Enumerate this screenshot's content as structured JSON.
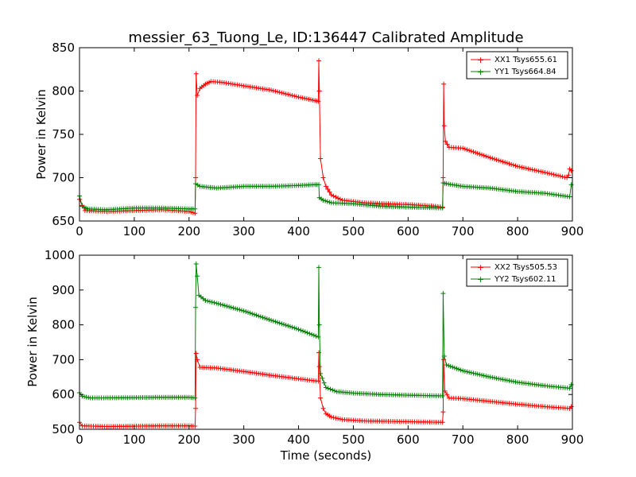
{
  "title": "messier_63_Tuong_Le, ID:136447 Calibrated Amplitude",
  "chart_data": [
    {
      "type": "line",
      "ylabel": "Power in Kelvin",
      "xlabel": "",
      "xlim": [
        0,
        900
      ],
      "ylim": [
        650,
        850
      ],
      "xticks": [
        "0",
        "100",
        "200",
        "300",
        "400",
        "500",
        "600",
        "700",
        "800",
        "900"
      ],
      "yticks": [
        "650",
        "700",
        "750",
        "800",
        "850"
      ],
      "legend_position": "top-right",
      "grid": false,
      "marker": "+",
      "series": [
        {
          "name": "XX1 Tsys655.61",
          "color": "#ff0000",
          "points": [
            [
              0,
              675
            ],
            [
              5,
              668
            ],
            [
              10,
              662
            ],
            [
              50,
              661
            ],
            [
              100,
              662
            ],
            [
              150,
              663
            ],
            [
              200,
              661
            ],
            [
              211,
              659
            ],
            [
              212,
              700
            ],
            [
              213,
              820
            ],
            [
              215,
              795
            ],
            [
              220,
              803
            ],
            [
              230,
              808
            ],
            [
              240,
              811
            ],
            [
              260,
              810
            ],
            [
              300,
              806
            ],
            [
              350,
              801
            ],
            [
              400,
              793
            ],
            [
              430,
              789
            ],
            [
              436,
              788
            ],
            [
              437,
              835
            ],
            [
              438,
              800
            ],
            [
              440,
              722
            ],
            [
              445,
              700
            ],
            [
              450,
              690
            ],
            [
              460,
              680
            ],
            [
              480,
              674
            ],
            [
              520,
              671
            ],
            [
              600,
              669
            ],
            [
              650,
              667
            ],
            [
              663,
              666
            ],
            [
              664,
              700
            ],
            [
              665,
              808
            ],
            [
              666,
              760
            ],
            [
              668,
              742
            ],
            [
              675,
              735
            ],
            [
              700,
              734
            ],
            [
              750,
              723
            ],
            [
              800,
              713
            ],
            [
              850,
              706
            ],
            [
              890,
              700
            ],
            [
              893,
              703
            ],
            [
              895,
              710
            ],
            [
              898,
              708
            ]
          ]
        },
        {
          "name": "YY1 Tsys664.84",
          "color": "#008000",
          "points": [
            [
              0,
              679
            ],
            [
              5,
              667
            ],
            [
              15,
              664
            ],
            [
              50,
              663
            ],
            [
              100,
              665
            ],
            [
              150,
              665
            ],
            [
              200,
              664
            ],
            [
              211,
              664
            ],
            [
              212,
              693
            ],
            [
              220,
              690
            ],
            [
              250,
              688
            ],
            [
              300,
              690
            ],
            [
              350,
              690
            ],
            [
              400,
              691
            ],
            [
              430,
              692
            ],
            [
              437,
              692
            ],
            [
              438,
              677
            ],
            [
              445,
              674
            ],
            [
              460,
              671
            ],
            [
              500,
              670
            ],
            [
              550,
              667
            ],
            [
              600,
              666
            ],
            [
              663,
              665
            ],
            [
              664,
              694
            ],
            [
              670,
              693
            ],
            [
              700,
              690
            ],
            [
              750,
              688
            ],
            [
              800,
              684
            ],
            [
              850,
              682
            ],
            [
              895,
              678
            ],
            [
              898,
              692
            ]
          ]
        }
      ]
    },
    {
      "type": "line",
      "ylabel": "Power in Kelvin",
      "xlabel": "Time (seconds)",
      "xlim": [
        0,
        900
      ],
      "ylim": [
        500,
        1000
      ],
      "xticks": [
        "0",
        "100",
        "200",
        "300",
        "400",
        "500",
        "600",
        "700",
        "800",
        "900"
      ],
      "yticks": [
        "500",
        "600",
        "700",
        "800",
        "900",
        "1000"
      ],
      "legend_position": "top-right",
      "grid": false,
      "marker": "+",
      "series": [
        {
          "name": "XX2 Tsys505.53",
          "color": "#ff0000",
          "points": [
            [
              0,
              520
            ],
            [
              5,
              510
            ],
            [
              50,
              508
            ],
            [
              100,
              509
            ],
            [
              150,
              510
            ],
            [
              200,
              510
            ],
            [
              211,
              509
            ],
            [
              212,
              560
            ],
            [
              213,
              718
            ],
            [
              215,
              700
            ],
            [
              220,
              678
            ],
            [
              250,
              676
            ],
            [
              300,
              666
            ],
            [
              350,
              655
            ],
            [
              400,
              645
            ],
            [
              436,
              638
            ],
            [
              437,
              720
            ],
            [
              438,
              680
            ],
            [
              440,
              590
            ],
            [
              445,
              560
            ],
            [
              450,
              545
            ],
            [
              460,
              535
            ],
            [
              480,
              528
            ],
            [
              520,
              524
            ],
            [
              600,
              522
            ],
            [
              663,
              520
            ],
            [
              664,
              550
            ],
            [
              665,
              700
            ],
            [
              667,
              610
            ],
            [
              675,
              590
            ],
            [
              700,
              588
            ],
            [
              750,
              580
            ],
            [
              800,
              572
            ],
            [
              850,
              565
            ],
            [
              895,
              560
            ],
            [
              898,
              565
            ]
          ]
        },
        {
          "name": "YY2 Tsys602.11",
          "color": "#008000",
          "points": [
            [
              0,
              605
            ],
            [
              5,
              595
            ],
            [
              20,
              590
            ],
            [
              100,
              591
            ],
            [
              150,
              592
            ],
            [
              200,
              592
            ],
            [
              211,
              590
            ],
            [
              212,
              850
            ],
            [
              213,
              975
            ],
            [
              215,
              940
            ],
            [
              218,
              885
            ],
            [
              230,
              870
            ],
            [
              250,
              862
            ],
            [
              300,
              840
            ],
            [
              350,
              813
            ],
            [
              400,
              787
            ],
            [
              436,
              765
            ],
            [
              437,
              965
            ],
            [
              438,
              800
            ],
            [
              440,
              660
            ],
            [
              450,
              620
            ],
            [
              470,
              608
            ],
            [
              500,
              604
            ],
            [
              550,
              600
            ],
            [
              600,
              598
            ],
            [
              663,
              596
            ],
            [
              664,
              890
            ],
            [
              666,
              710
            ],
            [
              670,
              685
            ],
            [
              700,
              668
            ],
            [
              750,
              650
            ],
            [
              800,
              635
            ],
            [
              850,
              625
            ],
            [
              895,
              618
            ],
            [
              898,
              628
            ]
          ]
        }
      ]
    }
  ]
}
